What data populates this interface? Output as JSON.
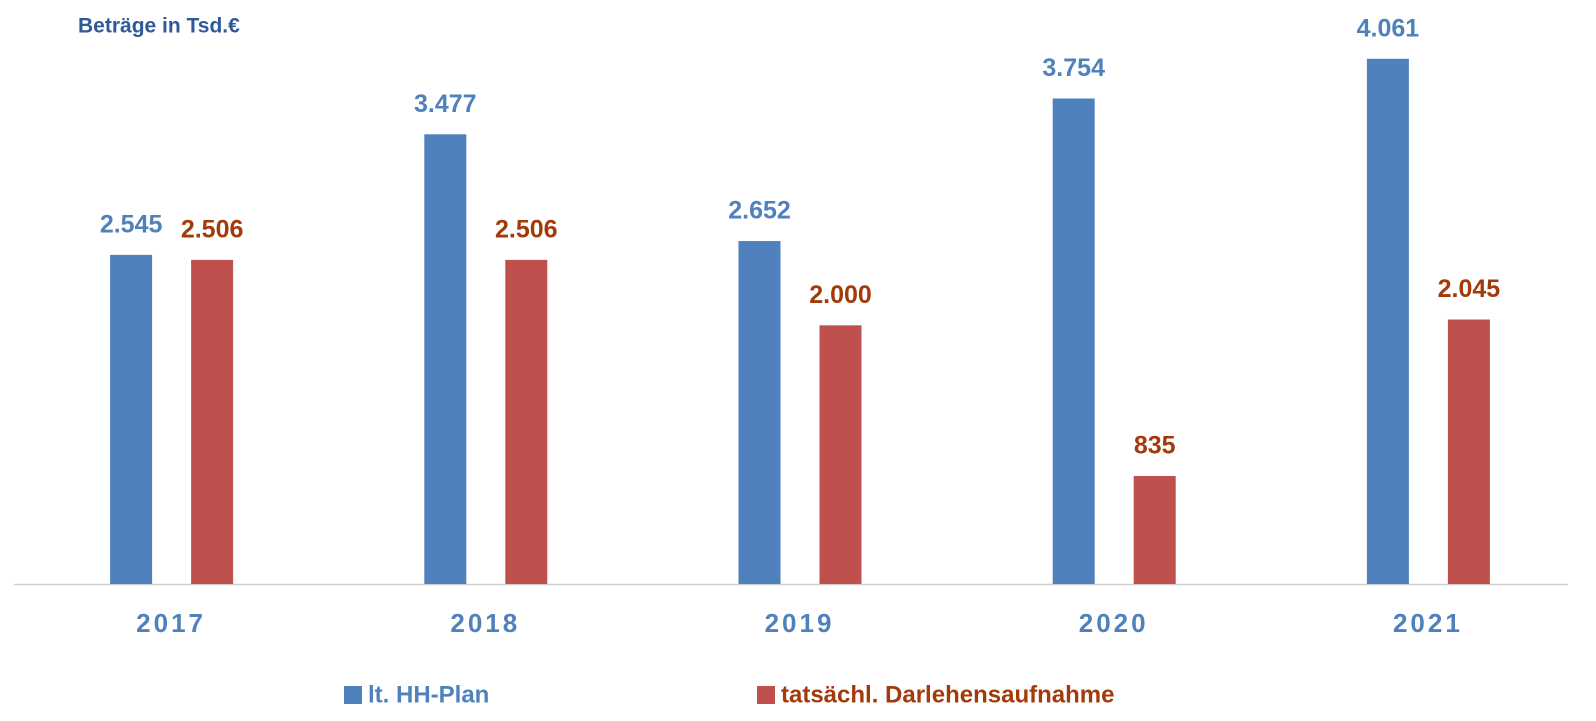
{
  "chart_data": {
    "type": "bar",
    "title": "Beträge in Tsd.€",
    "categories": [
      "2017",
      "2018",
      "2019",
      "2020",
      "2021"
    ],
    "series": [
      {
        "name": "lt. HH-Plan",
        "color": "#4f81bd",
        "label_color": "#4f81bd",
        "values": [
          2545,
          3477,
          2652,
          3754,
          4061
        ],
        "value_labels": [
          "2.545",
          "3.477",
          "2.652",
          "3.754",
          "4.061"
        ]
      },
      {
        "name": "tatsächl. Darlehensaufnahme",
        "color": "#c0504d",
        "label_color": "#a33a0a",
        "values": [
          2506,
          2506,
          2000,
          835,
          2045
        ],
        "value_labels": [
          "2.506",
          "2.506",
          "2.000",
          "835",
          "2.045"
        ]
      }
    ],
    "ylim": [
      0,
      4500
    ],
    "grid": false,
    "legend": "bottom"
  }
}
